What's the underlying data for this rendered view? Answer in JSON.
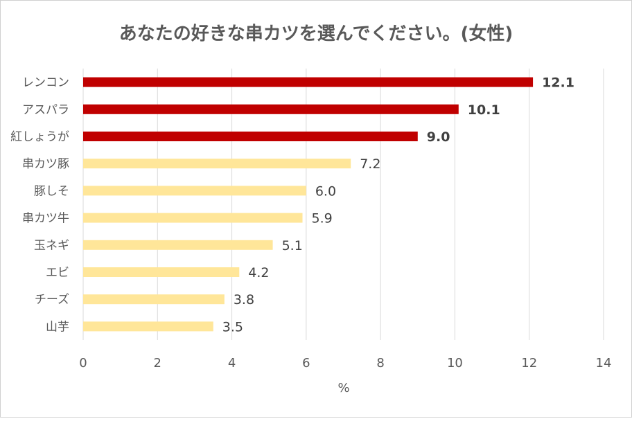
{
  "chart_data": {
    "type": "bar",
    "orientation": "horizontal",
    "title": "あなたの好きな串カツを選んでください。(女性)",
    "xlabel": "%",
    "ylabel": "",
    "xlim": [
      0,
      14
    ],
    "xticks": [
      0,
      2,
      4,
      6,
      8,
      10,
      12,
      14
    ],
    "grid": true,
    "categories": [
      "レンコン",
      "アスパラ",
      "紅しょうが",
      "串カツ豚",
      "豚しそ",
      "串カツ牛",
      "玉ネギ",
      "エビ",
      "チーズ",
      "山芋"
    ],
    "values": [
      12.1,
      10.1,
      9.0,
      7.2,
      6.0,
      5.9,
      5.1,
      4.2,
      3.8,
      3.5
    ],
    "value_labels": [
      "12.1",
      "10.1",
      "9.0",
      "7.2",
      "6.0",
      "5.9",
      "5.1",
      "4.2",
      "3.8",
      "3.5"
    ],
    "highlighted": [
      true,
      true,
      true,
      false,
      false,
      false,
      false,
      false,
      false,
      false
    ],
    "colors": {
      "highlight": "#C00000",
      "normal": "#FFE699",
      "grid": "#D9D9D9",
      "text": "#595959",
      "label": "#404040"
    }
  }
}
